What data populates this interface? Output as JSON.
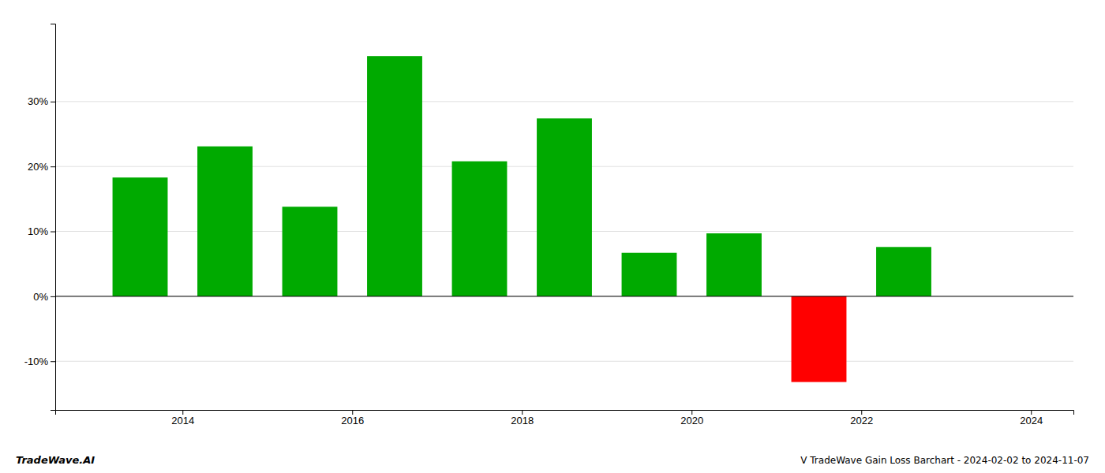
{
  "chart_data": {
    "type": "bar",
    "title": "V TradeWave Gain Loss Barchart - 2024-02-02 to 2024-11-07",
    "annotations": [
      "TradeWave.AI"
    ],
    "x": [
      2013.5,
      2014.5,
      2015.5,
      2016.5,
      2017.5,
      2018.5,
      2019.5,
      2020.5,
      2021.5,
      2022.5
    ],
    "values": [
      0.183,
      0.231,
      0.138,
      0.37,
      0.208,
      0.274,
      0.067,
      0.097,
      -0.132,
      0.076
    ],
    "colors": [
      "#00aa00",
      "#00aa00",
      "#00aa00",
      "#00aa00",
      "#00aa00",
      "#00aa00",
      "#00aa00",
      "#00aa00",
      "#ff0000",
      "#00aa00"
    ],
    "xlim": [
      2012.5,
      2024.5
    ],
    "xticks": [
      2014,
      2016,
      2018,
      2020,
      2022,
      2024
    ],
    "ylim": [
      -0.175,
      0.42
    ],
    "yticks": [
      {
        "value": -0.1,
        "label": "-10%"
      },
      {
        "value": 0.0,
        "label": "0%"
      },
      {
        "value": 0.1,
        "label": "10%"
      },
      {
        "value": 0.2,
        "label": "20%"
      },
      {
        "value": 0.3,
        "label": "30%"
      }
    ],
    "grid": true
  }
}
